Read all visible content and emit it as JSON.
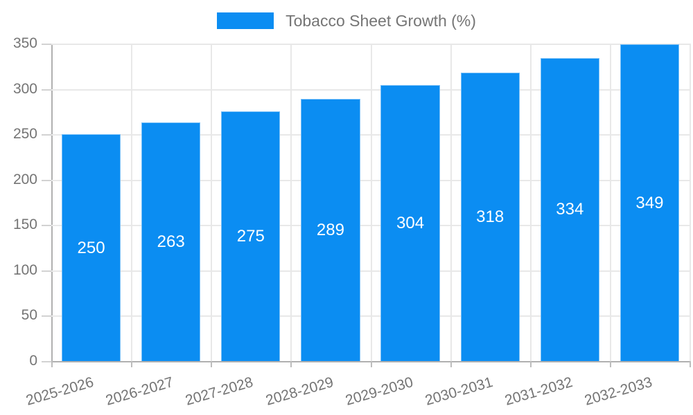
{
  "chart_data": {
    "type": "bar",
    "title": "Tobacco Sheet Growth (%)",
    "categories": [
      "2025-2026",
      "2026-2027",
      "2027-2028",
      "2028-2029",
      "2029-2030",
      "2030-2031",
      "2031-2032",
      "2032-2033"
    ],
    "values": [
      250,
      263,
      275,
      289,
      304,
      318,
      334,
      349
    ],
    "series": [
      {
        "name": "Tobacco Sheet Growth (%)",
        "values": [
          250,
          263,
          275,
          289,
          304,
          318,
          334,
          349
        ]
      }
    ],
    "xlabel": "",
    "ylabel": "",
    "ylim": [
      0,
      350
    ],
    "yticks": [
      0,
      50,
      100,
      150,
      200,
      250,
      300,
      350
    ],
    "grid": true,
    "legend_position": "top-center",
    "x_tick_rotation_deg": -16,
    "colors": {
      "bar_fill": "#0b8df2",
      "bar_border": "#79c0f8",
      "bar_label": "#ffffff",
      "axis_text": "#757575",
      "gridline": "#e8e8e8",
      "axis_line": "#b0b0b0"
    }
  }
}
